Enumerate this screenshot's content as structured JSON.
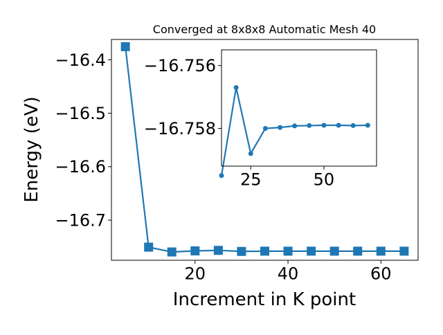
{
  "chart_data": [
    {
      "type": "line",
      "title": "Converged at 8x8x8 Automatic Mesh 40",
      "xlabel": "Increment in K point",
      "ylabel": "Energy (eV)",
      "xlim": [
        2,
        68
      ],
      "ylim": [
        -16.775,
        -16.362
      ],
      "x_ticks": [
        20,
        40,
        60
      ],
      "y_ticks": [
        -16.4,
        -16.5,
        -16.6,
        -16.7
      ],
      "x_tick_labels": [
        "20",
        "40",
        "60"
      ],
      "y_tick_labels": [
        "−16.4",
        "−16.5",
        "−16.6",
        "−16.7"
      ],
      "marker": "square",
      "color": "#1f77b4",
      "series": [
        {
          "x": [
            5,
            10,
            15,
            20,
            25,
            30,
            35,
            40,
            45,
            50,
            55,
            60,
            65
          ],
          "y": [
            -16.3755,
            -16.7505,
            -16.7595,
            -16.7575,
            -16.7565,
            -16.7585,
            -16.758,
            -16.758,
            -16.758,
            -16.758,
            -16.758,
            -16.758,
            -16.758
          ]
        }
      ]
    },
    {
      "type": "line",
      "role": "inset",
      "xlim": [
        15,
        68
      ],
      "ylim": [
        -16.7592,
        -16.7555
      ],
      "x_ticks": [
        25,
        50
      ],
      "y_ticks": [
        -16.758,
        -16.756
      ],
      "x_tick_labels": [
        "25",
        "50"
      ],
      "y_tick_labels": [
        "−16.758",
        "−16.756"
      ],
      "marker": "circle",
      "color": "#1f77b4",
      "series": [
        {
          "x": [
            15,
            20,
            25,
            30,
            35,
            40,
            45,
            50,
            55,
            60,
            65
          ],
          "y": [
            -16.7595,
            -16.7567,
            -16.7588,
            -16.758,
            -16.75797,
            -16.75792,
            -16.75791,
            -16.7579,
            -16.7579,
            -16.75791,
            -16.7579
          ]
        }
      ]
    }
  ]
}
